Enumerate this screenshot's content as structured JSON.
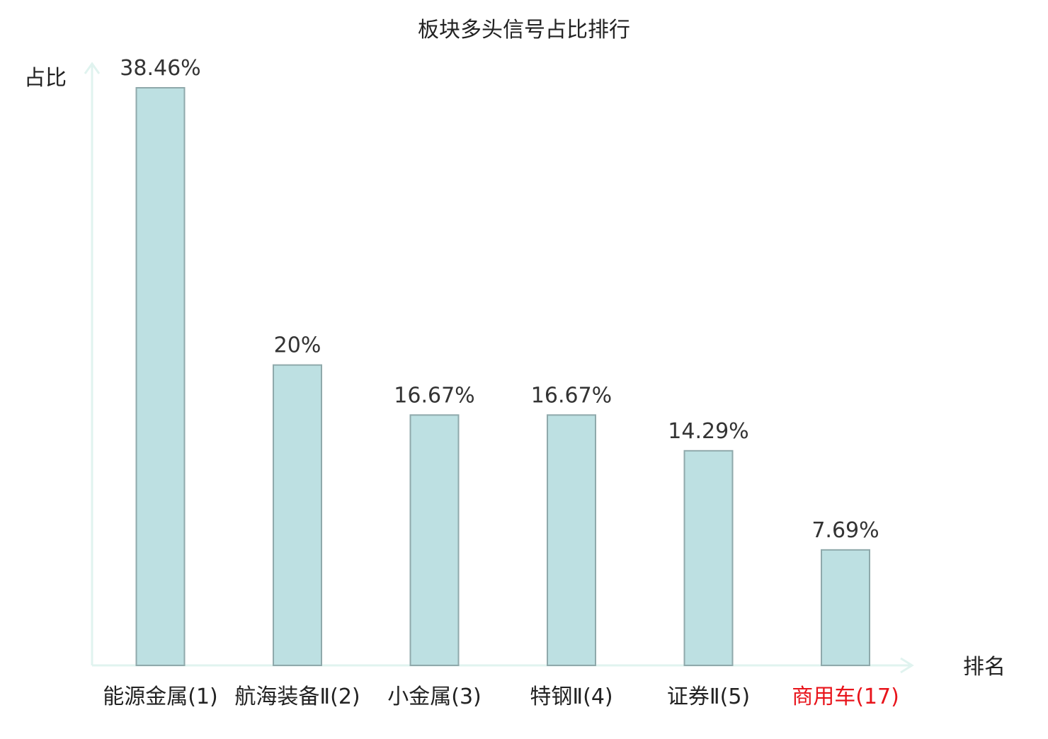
{
  "chart_data": {
    "type": "bar",
    "title": "板块多头信号占比排行",
    "ylabel": "占比",
    "xlabel": "排名",
    "ylim": [
      0,
      40
    ],
    "grid": false,
    "categories": [
      {
        "name": "能源金属",
        "rank": "(1)",
        "highlight": false
      },
      {
        "name": "航海装备Ⅱ",
        "rank": "(2)",
        "highlight": false
      },
      {
        "name": "小金属",
        "rank": "(3)",
        "highlight": false
      },
      {
        "name": "特钢Ⅱ",
        "rank": "(4)",
        "highlight": false
      },
      {
        "name": "证券Ⅱ",
        "rank": "(5)",
        "highlight": false
      },
      {
        "name": "商用车",
        "rank": "(17)",
        "highlight": true
      }
    ],
    "values": [
      38.46,
      20,
      16.67,
      16.67,
      14.29,
      7.69
    ],
    "value_labels": [
      "38.46%",
      "20%",
      "16.67%",
      "16.67%",
      "14.29%",
      "7.69%"
    ],
    "colors": {
      "bar_fill": "#bde0e2",
      "bar_stroke": "#8fa9ab",
      "axis": "#e0f3ef",
      "text": "#222222",
      "value_text": "#333333",
      "highlight_text": "#e8141b"
    }
  }
}
